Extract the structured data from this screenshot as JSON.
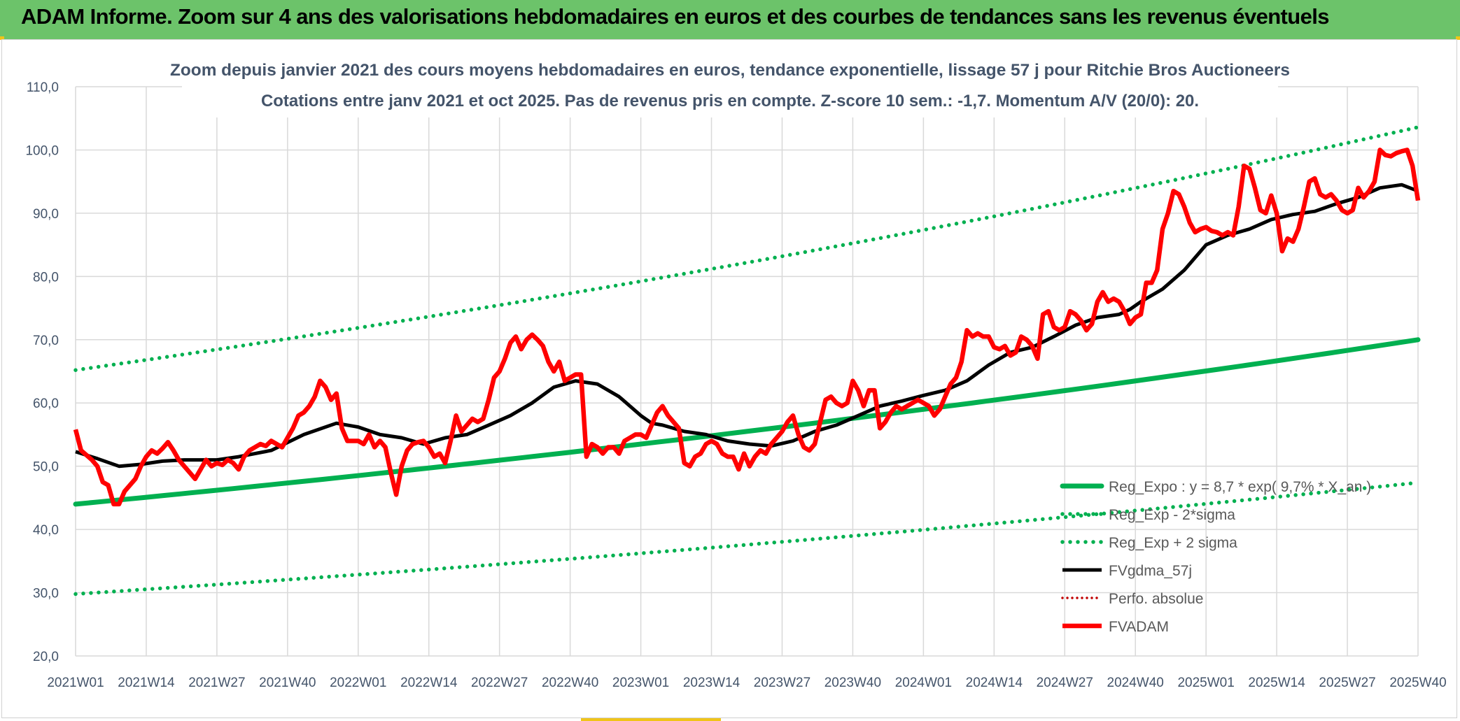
{
  "header": {
    "title": "ADAM Informe. Zoom sur 4 ans des valorisations hebdomadaires en euros et des courbes de tendances sans les revenus éventuels"
  },
  "colors": {
    "banner": "#6cc36a",
    "green": "#00b050",
    "red": "#ff0000",
    "black": "#000000",
    "dotted_red": "#c00000"
  },
  "chart_data": {
    "type": "line",
    "title": "Zoom depuis janvier 2021 des cours moyens hebdomadaires en euros, tendance exponentielle, lissage 57 j pour Ritchie Bros Auctioneers",
    "subtitle": "Cotations entre janv 2021 et oct 2025. Pas de revenus pris en compte. Z-score 10 sem.: -1,7. Momentum A/V (20/0): 20.",
    "x_ticks": [
      "2021W01",
      "2021W14",
      "2021W27",
      "2021W40",
      "2022W01",
      "2022W14",
      "2022W27",
      "2022W40",
      "2023W01",
      "2023W14",
      "2023W27",
      "2023W40",
      "2024W01",
      "2024W14",
      "2024W27",
      "2024W40",
      "2025W01",
      "2025W14",
      "2025W27",
      "2025W40"
    ],
    "ylim": [
      20,
      110
    ],
    "y_ticks": [
      "20,0",
      "30,0",
      "40,0",
      "50,0",
      "60,0",
      "70,0",
      "80,0",
      "90,0",
      "100,0",
      "110,0"
    ],
    "grid": true,
    "legend_position": "bottom-right",
    "legend": [
      "Reg_Expo : y = 8,7 * exp( 9,7% * X_an )",
      "Reg_Exp - 2*sigma",
      "Reg_Exp + 2 sigma",
      "FVgdma_57j",
      "Perfo. absolue",
      "FVADAM"
    ],
    "series": [
      {
        "name": "Reg_Expo : y = 8,7 * exp( 9,7% * X_an )",
        "style": "solid-green",
        "x": [
          0,
          247
        ],
        "values": [
          44.0,
          70.0
        ]
      },
      {
        "name": "Reg_Exp - 2*sigma",
        "style": "dotted-green",
        "x": [
          0,
          247
        ],
        "values": [
          29.8,
          47.4
        ]
      },
      {
        "name": "Reg_Exp + 2 sigma",
        "style": "dotted-green",
        "x": [
          0,
          247
        ],
        "values": [
          65.2,
          103.6
        ]
      },
      {
        "name": "FVgdma_57j",
        "style": "solid-black",
        "x": [
          0,
          4,
          8,
          12,
          16,
          20,
          26,
          30,
          36,
          42,
          48,
          52,
          56,
          60,
          64,
          68,
          72,
          76,
          80,
          84,
          88,
          92,
          96,
          100,
          104,
          106,
          108,
          112,
          116,
          120,
          124,
          128,
          132,
          136,
          140,
          144,
          148,
          152,
          156,
          160,
          164,
          168,
          172,
          176,
          180,
          184,
          188,
          192,
          194,
          196,
          200,
          204,
          208,
          212,
          216,
          220,
          224,
          228,
          232,
          236,
          240,
          244,
          247
        ],
        "values": [
          52.3,
          51.2,
          50.0,
          50.3,
          50.8,
          51.0,
          51.0,
          51.5,
          52.5,
          55.0,
          56.8,
          56.2,
          55.0,
          54.5,
          53.5,
          54.5,
          55.0,
          56.5,
          58.0,
          60.0,
          62.5,
          63.5,
          63.0,
          61.0,
          58.0,
          56.8,
          56.5,
          55.5,
          55.0,
          54.0,
          53.5,
          53.2,
          54.0,
          55.5,
          56.5,
          58.0,
          59.5,
          60.3,
          61.2,
          62.0,
          63.5,
          66.0,
          68.0,
          68.8,
          70.5,
          72.3,
          73.5,
          74.0,
          74.8,
          76.0,
          78.0,
          81.0,
          85.0,
          86.5,
          87.5,
          89.0,
          89.8,
          90.3,
          91.5,
          92.5,
          94.0,
          94.5,
          93.5
        ]
      },
      {
        "name": "FVADAM",
        "style": "solid-red",
        "x": [
          0,
          1,
          3,
          4,
          5,
          6,
          7,
          8,
          9,
          11,
          12,
          13,
          14,
          15,
          16,
          17,
          18,
          19,
          20,
          21,
          22,
          23,
          24,
          25,
          26,
          27,
          28,
          29,
          30,
          31,
          32,
          33,
          34,
          35,
          36,
          37,
          38,
          39,
          40,
          41,
          42,
          43,
          44,
          45,
          46,
          47,
          48,
          49,
          50,
          51,
          52,
          53,
          54,
          55,
          56,
          57,
          58,
          59,
          60,
          61,
          62,
          63,
          64,
          65,
          66,
          67,
          68,
          69,
          70,
          71,
          72,
          73,
          74,
          75,
          76,
          77,
          78,
          79,
          80,
          81,
          82,
          83,
          84,
          85,
          86,
          87,
          88,
          89,
          90,
          91,
          92,
          93,
          94,
          95,
          96,
          97,
          98,
          99,
          100,
          101,
          102,
          103,
          104,
          105,
          106,
          107,
          108,
          109,
          110,
          111,
          112,
          113,
          114,
          115,
          116,
          117,
          118,
          119,
          120,
          121,
          122,
          123,
          124,
          125,
          126,
          127,
          128,
          129,
          130,
          131,
          132,
          133,
          134,
          135,
          136,
          137,
          138,
          139,
          140,
          141,
          142,
          143,
          144,
          145,
          146,
          147,
          148,
          149,
          150,
          151,
          152,
          153,
          154,
          155,
          156,
          157,
          158,
          159,
          160,
          161,
          162,
          163,
          164,
          165,
          166,
          167,
          168,
          169,
          170,
          171,
          172,
          173,
          174,
          175,
          176,
          177,
          178,
          179,
          180,
          181,
          182,
          183,
          184,
          185,
          186,
          187,
          188,
          189,
          190,
          191,
          192,
          193,
          194,
          195,
          196,
          197,
          198,
          199,
          200,
          201,
          202,
          203,
          204,
          205,
          206,
          207,
          208,
          209,
          210,
          211,
          212,
          213,
          214,
          215,
          216,
          217,
          218,
          219,
          220,
          221,
          222,
          223,
          224,
          225,
          226,
          227,
          228,
          229,
          230,
          231,
          232,
          233,
          234,
          235,
          236,
          237,
          238,
          239,
          240,
          241,
          242,
          243,
          244,
          245,
          246,
          247
        ],
        "values": [
          55.8,
          52.5,
          51.0,
          50.0,
          47.5,
          47.0,
          44.0,
          44.0,
          46.0,
          48.0,
          50.0,
          51.5,
          52.5,
          52.0,
          52.8,
          53.8,
          52.5,
          51.0,
          50.0,
          49.0,
          48.0,
          49.5,
          51.0,
          50.0,
          50.5,
          50.2,
          51.0,
          50.5,
          49.5,
          51.5,
          52.5,
          53.0,
          53.5,
          53.2,
          54.0,
          53.5,
          53.0,
          54.5,
          56.0,
          58.0,
          58.5,
          59.5,
          61.0,
          63.5,
          62.5,
          60.5,
          61.5,
          56.0,
          54.0,
          54.0,
          54.0,
          53.5,
          55.0,
          53.0,
          54.0,
          53.0,
          49.0,
          45.5,
          50.0,
          52.5,
          53.5,
          53.8,
          54.0,
          53.0,
          51.5,
          52.0,
          50.5,
          54.0,
          58.0,
          55.5,
          56.5,
          57.5,
          57.0,
          57.5,
          60.5,
          64.0,
          65.0,
          67.0,
          69.5,
          70.5,
          68.5,
          70.0,
          70.8,
          70.0,
          69.0,
          66.5,
          65.0,
          66.5,
          63.5,
          64.0,
          64.5,
          64.5,
          51.5,
          53.5,
          53.0,
          52.0,
          53.0,
          53.0,
          52.0,
          54.0,
          54.5,
          55.0,
          55.0,
          54.5,
          56.5,
          58.5,
          59.5,
          58.0,
          57.0,
          56.0,
          50.5,
          50.0,
          51.5,
          52.0,
          53.5,
          54.0,
          53.5,
          52.0,
          51.5,
          51.5,
          49.5,
          52.0,
          50.0,
          51.5,
          52.5,
          52.0,
          53.5,
          54.5,
          55.5,
          57.0,
          58.0,
          55.0,
          53.0,
          52.5,
          53.5,
          57.0,
          60.5,
          61.0,
          60.0,
          59.5,
          60.0,
          63.5,
          62.0,
          59.5,
          62.0,
          62.0,
          56.0,
          57.0,
          58.5,
          59.5,
          59.0,
          59.5,
          60.0,
          60.5,
          60.0,
          59.5,
          58.0,
          59.0,
          61.0,
          63.0,
          64.0,
          66.5,
          71.5,
          70.5,
          71.0,
          70.5,
          70.5,
          68.8,
          68.5,
          69.0,
          67.5,
          68.0,
          70.5,
          70.0,
          69.0,
          67.0,
          74.0,
          74.5,
          72.0,
          71.5,
          72.0,
          74.5,
          74.0,
          73.0,
          71.5,
          72.5,
          76.0,
          77.5,
          76.0,
          76.5,
          76.0,
          74.5,
          72.5,
          73.5,
          74.0,
          79.0,
          79.0,
          81.0,
          87.5,
          90.0,
          93.5,
          93.0,
          91.0,
          88.5,
          87.0,
          87.5,
          87.8,
          87.2,
          87.0,
          86.5,
          87.0,
          86.5,
          91.0,
          97.5,
          97.0,
          94.0,
          90.5,
          90.0,
          92.8,
          90.0,
          84.0,
          86.0,
          85.5,
          87.5,
          91.0,
          95.0,
          95.5,
          93.0,
          92.5,
          93.0,
          92.0,
          90.5,
          90.0,
          90.5,
          94.0,
          92.5,
          93.5,
          95.0,
          100.0,
          99.2,
          99.0,
          99.5,
          99.8,
          100.0,
          97.5,
          92.0
        ]
      }
    ]
  }
}
